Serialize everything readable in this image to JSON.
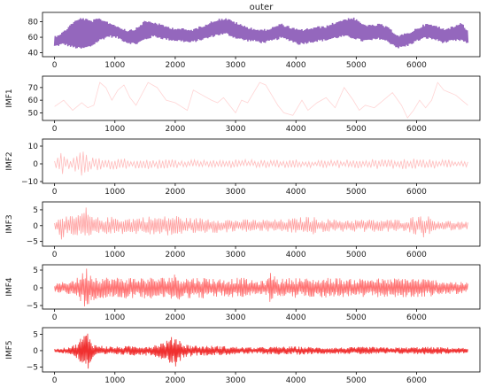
{
  "chart_data": [
    {
      "type": "line",
      "title": "outer",
      "ylabel": "",
      "xlim": [
        -200,
        7050
      ],
      "ylim": [
        35,
        92
      ],
      "xticks": [
        0,
        1000,
        2000,
        3000,
        4000,
        5000,
        6000
      ],
      "yticks": [
        40,
        60,
        80
      ],
      "color": "#9467bd",
      "series": [
        {
          "x": [
            0,
            150,
            300,
            450,
            600,
            750,
            900,
            1050,
            1200,
            1350,
            1500,
            1650,
            1800,
            1950,
            2100,
            2250,
            2400,
            2550,
            2700,
            2850,
            3000,
            3150,
            3300,
            3450,
            3600,
            3750,
            3900,
            4050,
            4200,
            4350,
            4500,
            4650,
            4800,
            4950,
            5100,
            5250,
            5400,
            5550,
            5700,
            5850,
            6000,
            6150,
            6300,
            6450,
            6600,
            6750,
            6850
          ],
          "low": [
            47,
            50,
            46,
            44,
            47,
            55,
            60,
            58,
            52,
            50,
            56,
            60,
            57,
            55,
            54,
            52,
            55,
            58,
            62,
            63,
            58,
            55,
            54,
            52,
            54,
            58,
            55,
            50,
            52,
            54,
            55,
            58,
            60,
            58,
            54,
            55,
            57,
            52,
            45,
            48,
            54,
            58,
            56,
            52,
            54,
            55,
            50
          ],
          "high": [
            62,
            68,
            80,
            86,
            82,
            85,
            80,
            75,
            70,
            72,
            82,
            80,
            76,
            73,
            72,
            70,
            74,
            79,
            84,
            85,
            80,
            75,
            72,
            70,
            73,
            78,
            74,
            70,
            72,
            74,
            75,
            80,
            84,
            86,
            78,
            76,
            78,
            72,
            63,
            66,
            72,
            78,
            76,
            72,
            74,
            80,
            68
          ]
        }
      ]
    },
    {
      "type": "line",
      "ylabel": "IMF1",
      "xlim": [
        -200,
        7050
      ],
      "ylim": [
        44,
        79
      ],
      "xticks": [
        0,
        1000,
        2000,
        3000,
        4000,
        5000,
        6000
      ],
      "yticks": [
        50,
        60,
        70
      ],
      "color": "#ffd4d4",
      "series": [
        {
          "x": [
            0,
            150,
            300,
            450,
            550,
            650,
            750,
            850,
            950,
            1050,
            1150,
            1250,
            1350,
            1450,
            1550,
            1700,
            1850,
            2000,
            2100,
            2200,
            2300,
            2450,
            2600,
            2700,
            2800,
            2900,
            3000,
            3100,
            3200,
            3300,
            3400,
            3500,
            3600,
            3700,
            3800,
            3950,
            4100,
            4200,
            4350,
            4500,
            4650,
            4800,
            4950,
            5050,
            5150,
            5300,
            5450,
            5600,
            5750,
            5850,
            5950,
            6050,
            6150,
            6250,
            6350,
            6450,
            6550,
            6650,
            6750,
            6850
          ],
          "y": [
            55,
            60,
            52,
            58,
            54,
            56,
            74,
            70,
            60,
            68,
            72,
            62,
            56,
            65,
            74,
            70,
            60,
            58,
            55,
            52,
            68,
            64,
            60,
            58,
            62,
            56,
            50,
            60,
            58,
            66,
            74,
            72,
            64,
            56,
            50,
            48,
            60,
            52,
            58,
            62,
            54,
            70,
            60,
            52,
            56,
            54,
            60,
            66,
            56,
            46,
            52,
            60,
            54,
            60,
            74,
            68,
            66,
            64,
            60,
            56
          ]
        }
      ]
    },
    {
      "type": "line",
      "ylabel": "IMF2",
      "xlim": [
        -200,
        7050
      ],
      "ylim": [
        -11,
        14
      ],
      "xticks": [
        0,
        1000,
        2000,
        3000,
        4000,
        5000,
        6000
      ],
      "yticks": [
        -10,
        0,
        10
      ],
      "color": "#ffbcbc",
      "amplitude": [
        [
          0,
          2
        ],
        [
          100,
          8
        ],
        [
          180,
          3
        ],
        [
          300,
          4
        ],
        [
          420,
          9
        ],
        [
          480,
          12
        ],
        [
          560,
          4
        ],
        [
          800,
          3.5
        ],
        [
          1200,
          3
        ],
        [
          1600,
          3
        ],
        [
          2000,
          2.5
        ],
        [
          2500,
          2.5
        ],
        [
          3000,
          2.5
        ],
        [
          3500,
          2.5
        ],
        [
          4000,
          2.5
        ],
        [
          4500,
          2.5
        ],
        [
          5000,
          2.5
        ],
        [
          5500,
          3
        ],
        [
          6000,
          3
        ],
        [
          6500,
          2.5
        ],
        [
          6850,
          2
        ]
      ]
    },
    {
      "type": "line",
      "ylabel": "IMF3",
      "xlim": [
        -200,
        7050
      ],
      "ylim": [
        -6.5,
        7.5
      ],
      "xticks": [
        0,
        1000,
        2000,
        3000,
        4000,
        5000,
        6000
      ],
      "yticks": [
        -5,
        0,
        5
      ],
      "color": "#ff9f9f",
      "amplitude": [
        [
          0,
          1
        ],
        [
          100,
          5
        ],
        [
          200,
          3
        ],
        [
          350,
          3
        ],
        [
          450,
          5
        ],
        [
          520,
          6
        ],
        [
          600,
          3
        ],
        [
          800,
          2.5
        ],
        [
          1000,
          3
        ],
        [
          1200,
          2.5
        ],
        [
          1500,
          3
        ],
        [
          1800,
          3
        ],
        [
          2000,
          3.5
        ],
        [
          2200,
          2.5
        ],
        [
          2600,
          2.5
        ],
        [
          3000,
          2
        ],
        [
          3400,
          2
        ],
        [
          3800,
          2
        ],
        [
          4200,
          3
        ],
        [
          4600,
          2
        ],
        [
          5000,
          2
        ],
        [
          5400,
          2
        ],
        [
          5800,
          2
        ],
        [
          6100,
          4
        ],
        [
          6300,
          2
        ],
        [
          6600,
          1.5
        ],
        [
          6850,
          1.2
        ]
      ]
    },
    {
      "type": "line",
      "ylabel": "IMF4",
      "xlim": [
        -200,
        7050
      ],
      "ylim": [
        -6,
        6.5
      ],
      "xticks": [
        0,
        1000,
        2000,
        3000,
        4000,
        5000,
        6000
      ],
      "yticks": [
        -5,
        0,
        5
      ],
      "color": "#ff7474",
      "amplitude": [
        [
          0,
          1
        ],
        [
          200,
          2
        ],
        [
          400,
          3
        ],
        [
          520,
          6
        ],
        [
          650,
          3.5
        ],
        [
          900,
          3
        ],
        [
          1200,
          3
        ],
        [
          1500,
          3
        ],
        [
          1800,
          3
        ],
        [
          2000,
          4
        ],
        [
          2100,
          3
        ],
        [
          2500,
          3
        ],
        [
          2800,
          2.5
        ],
        [
          3100,
          3
        ],
        [
          3300,
          2
        ],
        [
          3500,
          2
        ],
        [
          3600,
          5
        ],
        [
          3700,
          2.5
        ],
        [
          4000,
          3
        ],
        [
          4300,
          2.5
        ],
        [
          4600,
          3
        ],
        [
          4900,
          2.5
        ],
        [
          5200,
          3
        ],
        [
          5500,
          2.5
        ],
        [
          5800,
          3
        ],
        [
          6200,
          2.5
        ],
        [
          6500,
          2
        ],
        [
          6850,
          1.5
        ]
      ]
    },
    {
      "type": "line",
      "ylabel": "IMF5",
      "xlim": [
        -200,
        7050
      ],
      "ylim": [
        -6.5,
        7
      ],
      "xticks": [
        0,
        1000,
        2000,
        3000,
        4000,
        5000,
        6000
      ],
      "yticks": [
        -5,
        0,
        5
      ],
      "color": "#f03030",
      "amplitude": [
        [
          0,
          0.5
        ],
        [
          200,
          1
        ],
        [
          350,
          2
        ],
        [
          480,
          5
        ],
        [
          560,
          6
        ],
        [
          650,
          2
        ],
        [
          800,
          1.5
        ],
        [
          1000,
          1.2
        ],
        [
          1300,
          1.5
        ],
        [
          1600,
          1.5
        ],
        [
          1850,
          3
        ],
        [
          2000,
          5
        ],
        [
          2150,
          2
        ],
        [
          2400,
          1.5
        ],
        [
          2700,
          1.5
        ],
        [
          3000,
          1.2
        ],
        [
          3300,
          1
        ],
        [
          3600,
          1.2
        ],
        [
          4000,
          1.3
        ],
        [
          4400,
          1
        ],
        [
          4800,
          1
        ],
        [
          5200,
          1.2
        ],
        [
          5500,
          1
        ],
        [
          5800,
          1
        ],
        [
          6100,
          1.2
        ],
        [
          6500,
          1
        ],
        [
          6850,
          0.8
        ]
      ]
    }
  ]
}
